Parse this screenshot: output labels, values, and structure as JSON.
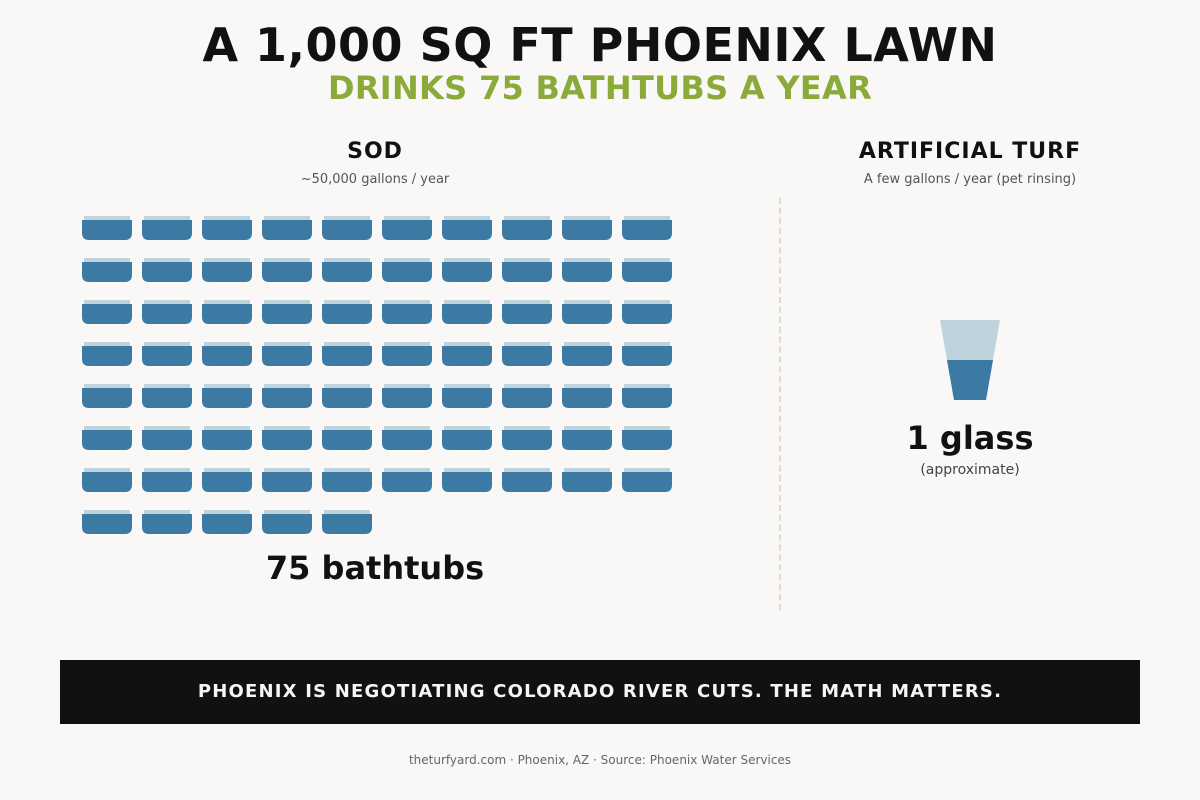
{
  "header": {
    "title": "A 1,000 SQ FT PHOENIX LAWN",
    "subtitle": "DRINKS 75 BATHTUBS A YEAR"
  },
  "colors": {
    "accent_green": "#8aab3a",
    "water_blue": "#3d7aa3",
    "water_light": "#bfd3dc",
    "banner_bg": "#111111"
  },
  "sod": {
    "heading": "SOD",
    "subheading": "~50,000 gallons / year",
    "tub_count": 75,
    "tubs_per_row": 10,
    "total_label": "75 bathtubs",
    "icon": "bathtub-icon"
  },
  "turf": {
    "heading": "ARTIFICIAL TURF",
    "subheading": "A few gallons / year (pet rinsing)",
    "total_label": "1 glass",
    "note": "(approximate)",
    "icon": "glass-icon",
    "glass_fill_fraction": 0.5
  },
  "banner": {
    "text": "PHOENIX IS NEGOTIATING COLORADO RIVER CUTS. THE MATH MATTERS."
  },
  "footer": {
    "text": "theturfyard.com · Phoenix, AZ · Source: Phoenix Water Services"
  }
}
